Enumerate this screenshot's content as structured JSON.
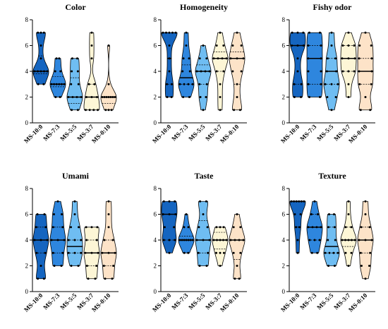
{
  "figure": {
    "categories": [
      "MS-10:0",
      "MS-7:3",
      "MS-5:5",
      "MS-3:7",
      "MS-0:10"
    ],
    "colors": [
      "#1565c0",
      "#2e86de",
      "#6fbdf2",
      "#fdf6d6",
      "#fde3c8"
    ],
    "y_ticks": [
      "0",
      "2",
      "4",
      "6",
      "8"
    ]
  },
  "chart_data": [
    {
      "type": "violin",
      "title": "Color",
      "ylim": [
        0,
        8
      ],
      "series": [
        {
          "category": "MS-10:0",
          "points": [
            3,
            3,
            4,
            4,
            4,
            4,
            4,
            5,
            6,
            7,
            7,
            7
          ],
          "median": 4,
          "quartiles": [
            3.8,
            5.2
          ]
        },
        {
          "category": "MS-7:3",
          "points": [
            2,
            2,
            3,
            3,
            3,
            3,
            3,
            3,
            4,
            4,
            5,
            5
          ],
          "median": 3,
          "quartiles": [
            2.8,
            3.6
          ]
        },
        {
          "category": "MS-5:5",
          "points": [
            1,
            1,
            2,
            2,
            2,
            2,
            3,
            3,
            4,
            4,
            5,
            5
          ],
          "median": 2,
          "quartiles": [
            1.5,
            3.5
          ]
        },
        {
          "category": "MS-3:7",
          "points": [
            1,
            1,
            1,
            1,
            2,
            2,
            2,
            3,
            3,
            5,
            6,
            7
          ],
          "median": 2,
          "quartiles": [
            1,
            3
          ]
        },
        {
          "category": "MS-0:10",
          "points": [
            1,
            1,
            1,
            2,
            2,
            2,
            2,
            2,
            2,
            2,
            3,
            6
          ],
          "median": 2,
          "quartiles": [
            1.5,
            2
          ]
        }
      ]
    },
    {
      "type": "violin",
      "title": "Homogeneity",
      "ylim": [
        0,
        8
      ],
      "series": [
        {
          "category": "MS-10:0",
          "points": [
            2,
            2,
            3,
            3,
            4,
            5,
            6,
            7,
            7,
            7,
            7,
            7
          ],
          "median": 5,
          "quartiles": [
            3,
            7
          ]
        },
        {
          "category": "MS-7:3",
          "points": [
            2,
            2,
            3,
            3,
            3,
            3,
            4,
            4,
            5,
            5,
            6,
            7
          ],
          "median": 3.5,
          "quartiles": [
            3,
            4.5
          ]
        },
        {
          "category": "MS-5:5",
          "points": [
            1,
            2,
            2,
            3,
            3,
            4,
            4,
            4,
            4,
            5,
            5,
            6
          ],
          "median": 4,
          "quartiles": [
            3,
            4.5
          ]
        },
        {
          "category": "MS-3:7",
          "points": [
            1,
            2,
            3,
            4,
            4,
            5,
            5,
            5,
            5,
            6,
            6,
            7
          ],
          "median": 5,
          "quartiles": [
            4,
            5.5
          ]
        },
        {
          "category": "MS-0:10",
          "points": [
            1,
            1,
            2,
            3,
            4,
            4,
            5,
            5,
            5,
            6,
            6,
            7
          ],
          "median": 5,
          "quartiles": [
            3,
            5.5
          ]
        }
      ]
    },
    {
      "type": "violin",
      "title": "Fishy odor",
      "ylim": [
        0,
        8
      ],
      "series": [
        {
          "category": "MS-10:0",
          "points": [
            2,
            2,
            3,
            3,
            4,
            5,
            6,
            6,
            6,
            7,
            7,
            7
          ],
          "median": 6,
          "quartiles": [
            3,
            6
          ]
        },
        {
          "category": "MS-7:3",
          "points": [
            2,
            2,
            3,
            3,
            4,
            4,
            5,
            5,
            6,
            6,
            7,
            7
          ],
          "median": 5,
          "quartiles": [
            3,
            6
          ]
        },
        {
          "category": "MS-5:5",
          "points": [
            1,
            2,
            2,
            3,
            3,
            3,
            4,
            4,
            5,
            5,
            6,
            7
          ],
          "median": 4,
          "quartiles": [
            3,
            5
          ]
        },
        {
          "category": "MS-3:7",
          "points": [
            2,
            3,
            4,
            4,
            4,
            5,
            5,
            5,
            6,
            6,
            6,
            7
          ],
          "median": 5,
          "quartiles": [
            4,
            6
          ]
        },
        {
          "category": "MS-0:10",
          "points": [
            1,
            1,
            2,
            3,
            3,
            4,
            4,
            5,
            5,
            6,
            6,
            7
          ],
          "median": 4,
          "quartiles": [
            3,
            5
          ]
        }
      ]
    },
    {
      "type": "violin",
      "title": "Umami",
      "ylim": [
        0,
        8
      ],
      "series": [
        {
          "category": "MS-10:0",
          "points": [
            1,
            1,
            2,
            3,
            3,
            4,
            4,
            4,
            5,
            5,
            6,
            6
          ],
          "median": 4,
          "quartiles": [
            3,
            5
          ]
        },
        {
          "category": "MS-7:3",
          "points": [
            2,
            2,
            3,
            3,
            4,
            4,
            4,
            5,
            5,
            6,
            6,
            7
          ],
          "median": 4,
          "quartiles": [
            3,
            5
          ]
        },
        {
          "category": "MS-5:5",
          "points": [
            2,
            2,
            3,
            3,
            3,
            4,
            4,
            4,
            5,
            5,
            6,
            7
          ],
          "median": 3.5,
          "quartiles": [
            3,
            4
          ]
        },
        {
          "category": "MS-3:7",
          "points": [
            1,
            1,
            2,
            2,
            3,
            3,
            3,
            4,
            4,
            5,
            5,
            5
          ],
          "median": 3,
          "quartiles": [
            2,
            4
          ]
        },
        {
          "category": "MS-0:10",
          "points": [
            1,
            1,
            2,
            2,
            3,
            3,
            3,
            4,
            4,
            5,
            6,
            7
          ],
          "median": 3,
          "quartiles": [
            2,
            4
          ]
        }
      ]
    },
    {
      "type": "violin",
      "title": "Taste",
      "ylim": [
        0,
        8
      ],
      "series": [
        {
          "category": "MS-10:0",
          "points": [
            3,
            4,
            4,
            4,
            5,
            5,
            6,
            6,
            6,
            7,
            7,
            7
          ],
          "median": 6,
          "quartiles": [
            4,
            6
          ]
        },
        {
          "category": "MS-7:3",
          "points": [
            3,
            3,
            4,
            4,
            4,
            4,
            4,
            4,
            4,
            5,
            5,
            6
          ],
          "median": 4,
          "quartiles": [
            4,
            4.3
          ]
        },
        {
          "category": "MS-5:5",
          "points": [
            2,
            2,
            3,
            3,
            4,
            4,
            4,
            5,
            5,
            6,
            7,
            7
          ],
          "median": 4,
          "quartiles": [
            3,
            5.5
          ]
        },
        {
          "category": "MS-3:7",
          "points": [
            2,
            3,
            3,
            3,
            4,
            4,
            4,
            4,
            4,
            5,
            5,
            5
          ],
          "median": 4,
          "quartiles": [
            3.3,
            4.6
          ]
        },
        {
          "category": "MS-0:10",
          "points": [
            1,
            1,
            2,
            3,
            3,
            4,
            4,
            4,
            4,
            5,
            5,
            6
          ],
          "median": 4,
          "quartiles": [
            2.5,
            4
          ]
        }
      ]
    },
    {
      "type": "violin",
      "title": "Texture",
      "ylim": [
        0,
        8
      ],
      "series": [
        {
          "category": "MS-10:0",
          "points": [
            3,
            4,
            5,
            5,
            6,
            6,
            7,
            7,
            7,
            7,
            7,
            7
          ],
          "median": 7,
          "quartiles": [
            5,
            7
          ]
        },
        {
          "category": "MS-7:3",
          "points": [
            3,
            3,
            4,
            4,
            4,
            5,
            5,
            5,
            5,
            6,
            6,
            7
          ],
          "median": 5,
          "quartiles": [
            4,
            6
          ]
        },
        {
          "category": "MS-5:5",
          "points": [
            2,
            2,
            3,
            3,
            3,
            3,
            4,
            4,
            5,
            5,
            6,
            6
          ],
          "median": 3.5,
          "quartiles": [
            3,
            5
          ]
        },
        {
          "category": "MS-3:7",
          "points": [
            2,
            3,
            3,
            4,
            4,
            4,
            4,
            4,
            5,
            5,
            6,
            7
          ],
          "median": 4,
          "quartiles": [
            3.5,
            5
          ]
        },
        {
          "category": "MS-0:10",
          "points": [
            1,
            2,
            2,
            3,
            3,
            4,
            4,
            4,
            5,
            5,
            6,
            7
          ],
          "median": 4,
          "quartiles": [
            3,
            5
          ]
        }
      ]
    }
  ]
}
